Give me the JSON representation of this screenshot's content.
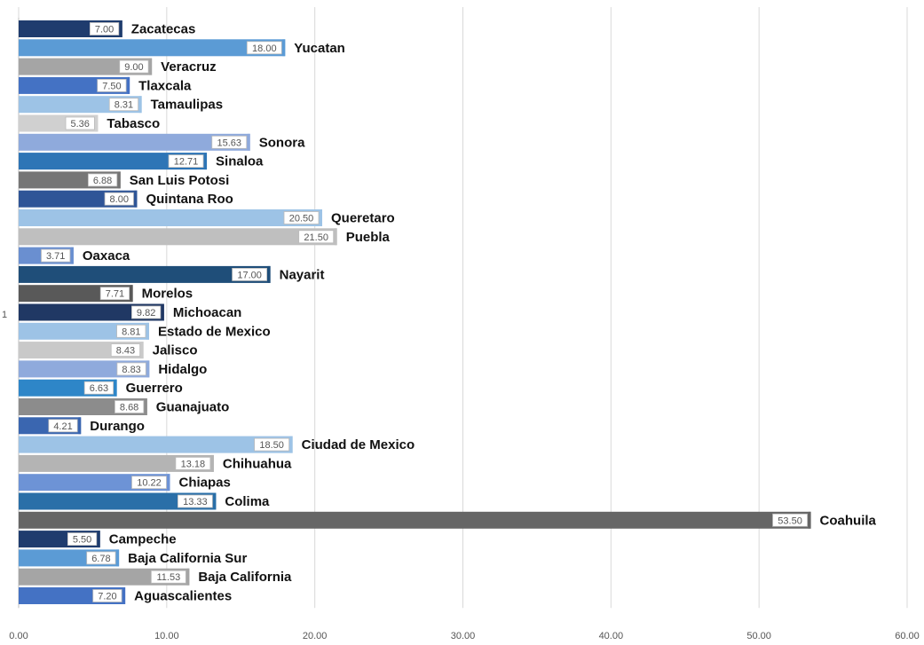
{
  "chart_data": {
    "type": "bar",
    "orientation": "horizontal",
    "title": "",
    "xlabel": "",
    "ylabel": "",
    "axis_marker": "1",
    "xlim": [
      0,
      60
    ],
    "xticks": [
      "0.00",
      "10.00",
      "20.00",
      "30.00",
      "40.00",
      "50.00",
      "60.00"
    ],
    "grid": "vertical",
    "categories": [
      "Zacatecas",
      "Yucatan",
      "Veracruz",
      "Tlaxcala",
      "Tamaulipas",
      "Tabasco",
      "Sonora",
      "Sinaloa",
      "San Luis Potosi",
      "Quintana Roo",
      "Queretaro",
      "Puebla",
      "Oaxaca",
      "Nayarit",
      "Morelos",
      "Michoacan",
      "Estado de Mexico",
      "Jalisco",
      "Hidalgo",
      "Guerrero",
      "Guanajuato",
      "Durango",
      "Ciudad de Mexico",
      "Chihuahua",
      "Chiapas",
      "Colima",
      "Coahuila",
      "Campeche",
      "Baja California Sur",
      "Baja California",
      "Aguascalientes"
    ],
    "values": [
      7.0,
      18.0,
      9.0,
      7.5,
      8.31,
      5.36,
      15.63,
      12.71,
      6.88,
      8.0,
      20.5,
      21.5,
      3.71,
      17.0,
      7.71,
      9.82,
      8.81,
      8.43,
      8.83,
      6.63,
      8.68,
      4.21,
      18.5,
      13.18,
      10.22,
      13.33,
      53.5,
      5.5,
      6.78,
      11.53,
      7.2
    ],
    "value_labels": [
      "7.00",
      "18.00",
      "9.00",
      "7.50",
      "8.31",
      "5.36",
      "15.63",
      "12.71",
      "6.88",
      "8.00",
      "20.50",
      "21.50",
      "3.71",
      "17.00",
      "7.71",
      "9.82",
      "8.81",
      "8.43",
      "8.83",
      "6.63",
      "8.68",
      "4.21",
      "18.50",
      "13.18",
      "10.22",
      "13.33",
      "53.50",
      "5.50",
      "6.78",
      "11.53",
      "7.20"
    ],
    "colors": [
      "#1f3c6e",
      "#5b9bd5",
      "#a5a5a5",
      "#4472c4",
      "#9dc3e6",
      "#d0d0d0",
      "#8faadc",
      "#2e75b6",
      "#767676",
      "#2f5597",
      "#9dc3e6",
      "#bfbfbf",
      "#6a8fd0",
      "#1f4e79",
      "#595959",
      "#203864",
      "#9dc3e6",
      "#c9c9c9",
      "#8faadc",
      "#2e86c8",
      "#8c8c8c",
      "#3a66b0",
      "#9dc3e6",
      "#b4b4b4",
      "#6d93d6",
      "#2a6fa8",
      "#666666",
      "#1f3c6e",
      "#5b9bd5",
      "#a5a5a5",
      "#4472c4"
    ]
  }
}
